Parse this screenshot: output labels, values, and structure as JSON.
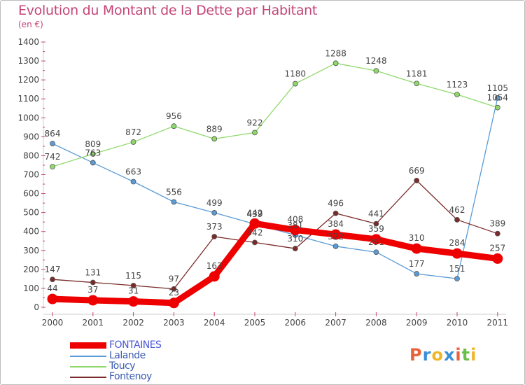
{
  "header": {
    "title": "Evolution du Montant de la Dette par Habitant",
    "unit": "(en €)"
  },
  "chart_data": {
    "type": "line",
    "title": "Evolution du Montant de la Dette par Habitant",
    "ylabel": "(en €)",
    "xlabel": "",
    "categories": [
      "2000",
      "2001",
      "2002",
      "2003",
      "2004",
      "2005",
      "2006",
      "2007",
      "2008",
      "2009",
      "2010",
      "2011"
    ],
    "ylim": [
      0,
      1400
    ],
    "yticks": [
      0,
      100,
      200,
      300,
      400,
      500,
      600,
      700,
      800,
      900,
      1000,
      1100,
      1200,
      1300,
      1400
    ],
    "grid": false,
    "legend": "bottom-left",
    "series": [
      {
        "name": "FONTAINES",
        "color": "#ee0000",
        "values": [
          44,
          37,
          31,
          23,
          163,
          442,
          408,
          384,
          359,
          310,
          284,
          257
        ],
        "labels": [
          "44",
          "37",
          "31",
          "23",
          "163",
          "442",
          "408",
          "384",
          "359",
          "310",
          "284",
          "257"
        ]
      },
      {
        "name": "Lalande",
        "color": "#5b9bd5",
        "values": [
          864,
          763,
          663,
          556,
          499,
          439,
          381,
          322,
          291,
          177,
          151,
          1105
        ],
        "labels": [
          "864",
          "763",
          "663",
          "556",
          "499",
          "439",
          "381",
          "322",
          "291",
          "177",
          "151",
          "1105"
        ]
      },
      {
        "name": "Toucy",
        "color": "#8fd96b",
        "values": [
          742,
          809,
          872,
          956,
          889,
          922,
          1180,
          1288,
          1248,
          1181,
          1123,
          1054
        ],
        "labels": [
          "742",
          "809",
          "872",
          "956",
          "889",
          "922",
          "1180",
          "1288",
          "1248",
          "1181",
          "1123",
          "1054"
        ]
      },
      {
        "name": "Fontenoy",
        "color": "#7b2a2a",
        "values": [
          147,
          131,
          115,
          97,
          373,
          342,
          310,
          496,
          441,
          669,
          462,
          389
        ],
        "labels": [
          "147",
          "131",
          "115",
          "97",
          "373",
          "342",
          "310",
          "496",
          "441",
          "669",
          "462",
          "389"
        ]
      }
    ]
  },
  "logo": {
    "letters": [
      {
        "ch": "P",
        "color": "#e8623a"
      },
      {
        "ch": "r",
        "color": "#3a8fd6"
      },
      {
        "ch": "o",
        "color": "#f1b52a"
      },
      {
        "ch": "x",
        "color": "#3a8fd6"
      },
      {
        "ch": "i",
        "color": "#e8623a"
      },
      {
        "ch": "t",
        "color": "#6abf4b"
      },
      {
        "ch": "i",
        "color": "#f1b52a"
      }
    ]
  }
}
